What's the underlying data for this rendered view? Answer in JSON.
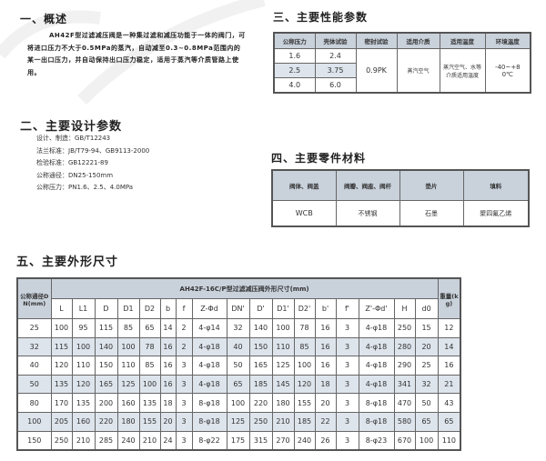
{
  "sec1": {
    "title": "一、概述",
    "text": "AH42F型过滤减压阀是一种集过滤和减压功能于一体的阀门，可将进口压力不大于0.5MPa的蒸汽，自动减至0.3~0.8MPa范围内的某一出口压力，并自动保持出口压力稳定，适用于蒸汽等介质管路上使用。"
  },
  "sec2": {
    "title": "二、主要设计参数",
    "items": [
      "设计、制造：GB/T12243",
      "法兰标准：JB/T79-94、GB9113-2000",
      "检验标准：GB12221-89",
      "公称通径：DN25-150mm",
      "公称压力：PN1.6、2.5、4.0MPa"
    ]
  },
  "sec3": {
    "title": "三、主要性能参数",
    "headers": [
      "公称压力",
      "壳体试验",
      "密封试验",
      "适用介质",
      "适用温度",
      "环境温度"
    ],
    "rows": [
      [
        "1.6",
        "2.4"
      ],
      [
        "2.5",
        "3.75"
      ],
      [
        "4.0",
        "6.0"
      ]
    ],
    "seal": "0.9PK",
    "medium": "蒸汽空气",
    "temp": "蒸汽空气、水等介质适用温度",
    "ambient": "-40~+80℃"
  },
  "sec4": {
    "title": "四、主要零件材料",
    "headers": [
      "阀体、阀盖",
      "阀瓣、阀座、阀杆",
      "垫片",
      "填料"
    ],
    "values": [
      "WCB",
      "不锈钢",
      "石墨",
      "聚四氟乙烯"
    ]
  },
  "sec5": {
    "title": "五、主要外形尺寸",
    "dn_header": "公称通径DN(mm)",
    "group_header": "AH42F-16C/P型过滤减压阀外形尺寸(mm)",
    "weight_header": "重量(kg)",
    "columns": [
      "L",
      "L1",
      "D",
      "D1",
      "D2",
      "b",
      "f",
      "Z-Φd",
      "DN'",
      "D'",
      "D1'",
      "D2'",
      "b'",
      "f'",
      "Z'-Φd'",
      "H",
      "d0"
    ],
    "rows": [
      [
        "25",
        "100",
        "95",
        "115",
        "85",
        "65",
        "14",
        "2",
        "4-φ14",
        "32",
        "140",
        "100",
        "78",
        "16",
        "3",
        "4-φ18",
        "250",
        "15",
        "12"
      ],
      [
        "32",
        "115",
        "100",
        "140",
        "100",
        "78",
        "16",
        "2",
        "4-φ18",
        "40",
        "150",
        "110",
        "85",
        "16",
        "3",
        "4-φ18",
        "280",
        "20",
        "14"
      ],
      [
        "40",
        "120",
        "110",
        "150",
        "110",
        "85",
        "16",
        "3",
        "4-φ18",
        "50",
        "165",
        "125",
        "100",
        "16",
        "3",
        "4-φ18",
        "290",
        "25",
        "16"
      ],
      [
        "50",
        "135",
        "120",
        "165",
        "125",
        "100",
        "16",
        "3",
        "4-φ18",
        "65",
        "185",
        "145",
        "120",
        "18",
        "3",
        "4-φ18",
        "341",
        "32",
        "21"
      ],
      [
        "80",
        "170",
        "135",
        "200",
        "160",
        "135",
        "18",
        "3",
        "8-φ18",
        "100",
        "220",
        "180",
        "155",
        "20",
        "3",
        "8-φ18",
        "470",
        "50",
        "43"
      ],
      [
        "100",
        "205",
        "160",
        "220",
        "180",
        "155",
        "20",
        "3",
        "8-φ18",
        "125",
        "250",
        "210",
        "185",
        "22",
        "3",
        "8-φ18",
        "580",
        "65",
        "65"
      ],
      [
        "150",
        "250",
        "210",
        "285",
        "240",
        "210",
        "24",
        "3",
        "8-φ22",
        "175",
        "315",
        "270",
        "240",
        "26",
        "3",
        "8-φ23",
        "670",
        "100",
        "110"
      ]
    ]
  }
}
